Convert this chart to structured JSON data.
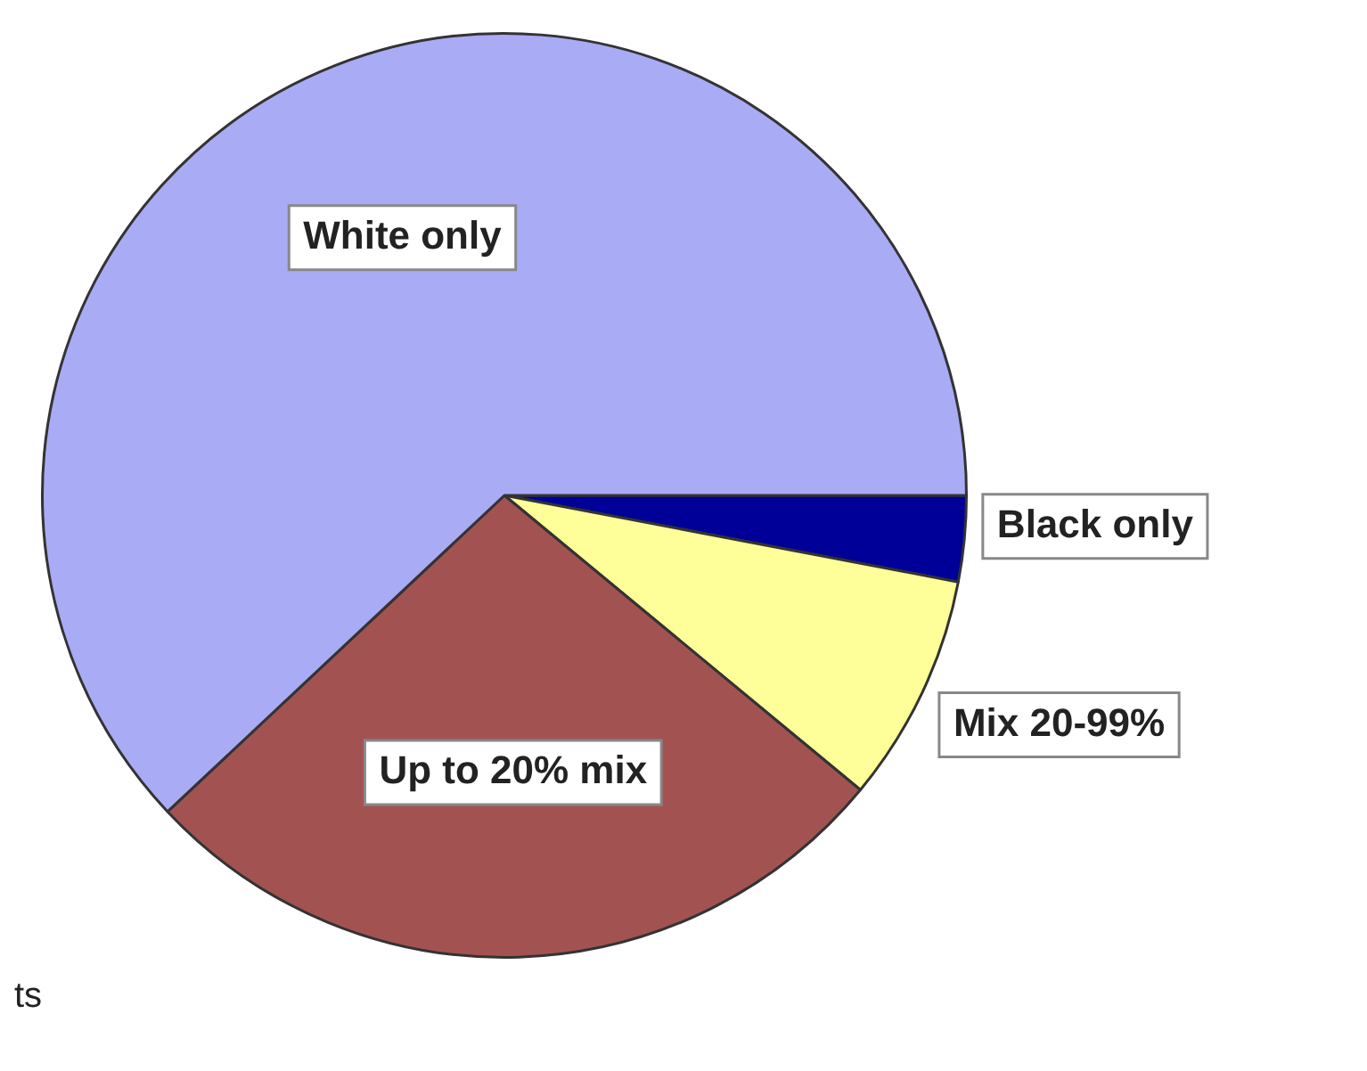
{
  "chart_data": {
    "type": "pie",
    "categories": [
      "Black only",
      "Mix 20-99%",
      "Up to 20% mix",
      "White only"
    ],
    "values": [
      3,
      8,
      27,
      62
    ],
    "colors": [
      "#000099",
      "#ffff99",
      "#a35252",
      "#a9abf5"
    ],
    "annotations": [
      "ts"
    ],
    "legend": false
  }
}
